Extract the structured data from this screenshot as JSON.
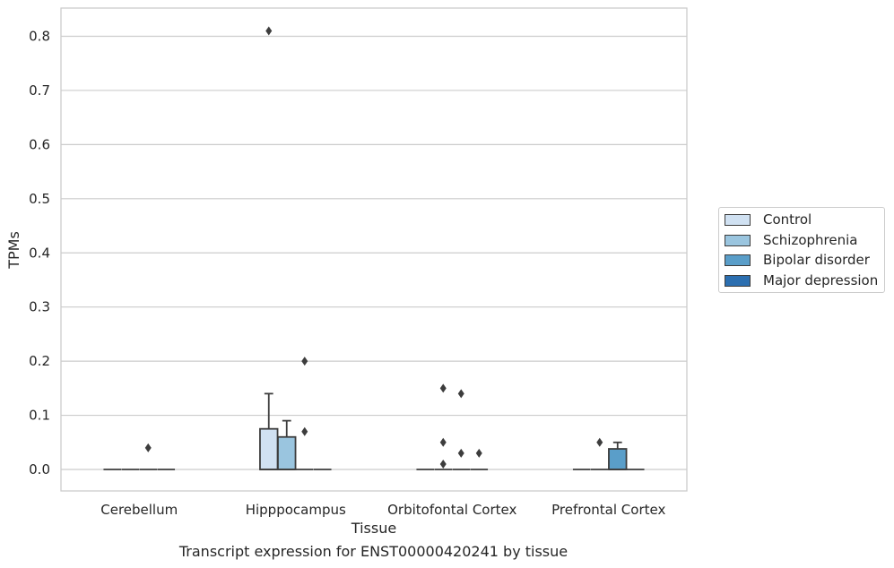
{
  "chart_data": {
    "type": "box",
    "xlabel": "Tissue",
    "ylabel": "TPMs",
    "ylim": [
      -0.04,
      0.85
    ],
    "yticks": [
      0.0,
      0.1,
      0.2,
      0.3,
      0.4,
      0.5,
      0.6,
      0.7,
      0.8
    ],
    "ytick_labels": [
      "0.0",
      "0.1",
      "0.2",
      "0.3",
      "0.4",
      "0.5",
      "0.6",
      "0.7",
      "0.8"
    ],
    "categories": [
      "Cerebellum",
      "Hipppocampus",
      "Orbitofontal Cortex",
      "Prefrontal Cortex"
    ],
    "grid": "horizontal",
    "legend_position": "right",
    "series": [
      {
        "name": "Control",
        "color": "#d0e1f2",
        "boxes": [
          {
            "category": "Cerebellum",
            "q1": 0.0,
            "median": 0.0,
            "q3": 0.0,
            "whisker_low": 0.0,
            "whisker_high": 0.0,
            "outliers": []
          },
          {
            "category": "Hipppocampus",
            "q1": 0.0,
            "median": 0.0,
            "q3": 0.075,
            "whisker_low": 0.0,
            "whisker_high": 0.14,
            "outliers": [
              0.81
            ]
          },
          {
            "category": "Orbitofontal Cortex",
            "q1": 0.0,
            "median": 0.0,
            "q3": 0.0,
            "whisker_low": 0.0,
            "whisker_high": 0.0,
            "outliers": []
          },
          {
            "category": "Prefrontal Cortex",
            "q1": 0.0,
            "median": 0.0,
            "q3": 0.0,
            "whisker_low": 0.0,
            "whisker_high": 0.0,
            "outliers": []
          }
        ]
      },
      {
        "name": "Schizophrenia",
        "color": "#9ac5df",
        "boxes": [
          {
            "category": "Cerebellum",
            "q1": 0.0,
            "median": 0.0,
            "q3": 0.0,
            "whisker_low": 0.0,
            "whisker_high": 0.0,
            "outliers": []
          },
          {
            "category": "Hipppocampus",
            "q1": 0.0,
            "median": 0.0,
            "q3": 0.06,
            "whisker_low": 0.0,
            "whisker_high": 0.09,
            "outliers": []
          },
          {
            "category": "Orbitofontal Cortex",
            "q1": 0.0,
            "median": 0.0,
            "q3": 0.0,
            "whisker_low": 0.0,
            "whisker_high": 0.0,
            "outliers": [
              0.15,
              0.05,
              0.01
            ]
          },
          {
            "category": "Prefrontal Cortex",
            "q1": 0.0,
            "median": 0.0,
            "q3": 0.0,
            "whisker_low": 0.0,
            "whisker_high": 0.0,
            "outliers": [
              0.05
            ]
          }
        ]
      },
      {
        "name": "Bipolar disorder",
        "color": "#5a9ec9",
        "boxes": [
          {
            "category": "Cerebellum",
            "q1": 0.0,
            "median": 0.0,
            "q3": 0.0,
            "whisker_low": 0.0,
            "whisker_high": 0.0,
            "outliers": [
              0.04
            ]
          },
          {
            "category": "Hipppocampus",
            "q1": 0.0,
            "median": 0.0,
            "q3": 0.0,
            "whisker_low": 0.0,
            "whisker_high": 0.0,
            "outliers": [
              0.2,
              0.07
            ]
          },
          {
            "category": "Orbitofontal Cortex",
            "q1": 0.0,
            "median": 0.0,
            "q3": 0.0,
            "whisker_low": 0.0,
            "whisker_high": 0.0,
            "outliers": [
              0.14,
              0.03
            ]
          },
          {
            "category": "Prefrontal Cortex",
            "q1": 0.0,
            "median": 0.0,
            "q3": 0.038,
            "whisker_low": 0.0,
            "whisker_high": 0.05,
            "outliers": []
          }
        ]
      },
      {
        "name": "Major depression",
        "color": "#2c6fb0",
        "boxes": [
          {
            "category": "Cerebellum",
            "q1": 0.0,
            "median": 0.0,
            "q3": 0.0,
            "whisker_low": 0.0,
            "whisker_high": 0.0,
            "outliers": []
          },
          {
            "category": "Hipppocampus",
            "q1": 0.0,
            "median": 0.0,
            "q3": 0.0,
            "whisker_low": 0.0,
            "whisker_high": 0.0,
            "outliers": []
          },
          {
            "category": "Orbitofontal Cortex",
            "q1": 0.0,
            "median": 0.0,
            "q3": 0.0,
            "whisker_low": 0.0,
            "whisker_high": 0.0,
            "outliers": [
              0.03
            ]
          },
          {
            "category": "Prefrontal Cortex",
            "q1": 0.0,
            "median": 0.0,
            "q3": 0.0,
            "whisker_low": 0.0,
            "whisker_high": 0.0,
            "outliers": []
          }
        ]
      }
    ],
    "caption": "Transcript expression for ENST00000420241 by tissue"
  }
}
